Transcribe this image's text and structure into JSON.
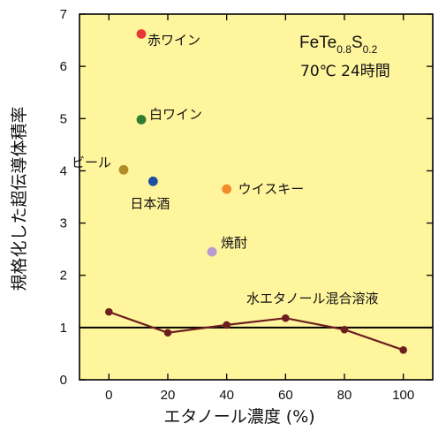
{
  "chart_data": {
    "type": "scatter",
    "xlabel": "エタノール濃度 (%)",
    "ylabel": "規格化した超伝導体積率",
    "xlim": [
      -10,
      110
    ],
    "ylim": [
      0,
      7
    ],
    "x_ticks": [
      "0",
      "20",
      "40",
      "60",
      "80",
      "100"
    ],
    "y_ticks": [
      "0",
      "1",
      "2",
      "3",
      "4",
      "5",
      "6",
      "7"
    ],
    "background": "#FFF59D",
    "reference_line": {
      "y": 1.0,
      "color": "#000000"
    },
    "annotation": {
      "formula_base": "FeTe",
      "formula_sub1": "0.8",
      "formula_mid": "S",
      "formula_sub2": "0.2",
      "condition": "70℃ 24時間"
    },
    "points": [
      {
        "label": "赤ワイン",
        "x": 11,
        "y": 6.62,
        "color": "#E53935"
      },
      {
        "label": "白ワイン",
        "x": 11,
        "y": 4.98,
        "color": "#2E7D32"
      },
      {
        "label": "ビール",
        "x": 5,
        "y": 4.02,
        "color": "#B08D2A"
      },
      {
        "label": "日本酒",
        "x": 15,
        "y": 3.8,
        "color": "#1E4FA0"
      },
      {
        "label": "ウイスキー",
        "x": 40,
        "y": 3.65,
        "color": "#F28C28"
      },
      {
        "label": "焼酎",
        "x": 35,
        "y": 2.45,
        "color": "#B79BD0"
      }
    ],
    "series": [
      {
        "name": "水エタノール混合溶液",
        "color": "#6D1F1F",
        "x": [
          0,
          20,
          40,
          60,
          80,
          100
        ],
        "y": [
          1.3,
          0.9,
          1.05,
          1.18,
          0.96,
          0.57
        ]
      }
    ]
  }
}
